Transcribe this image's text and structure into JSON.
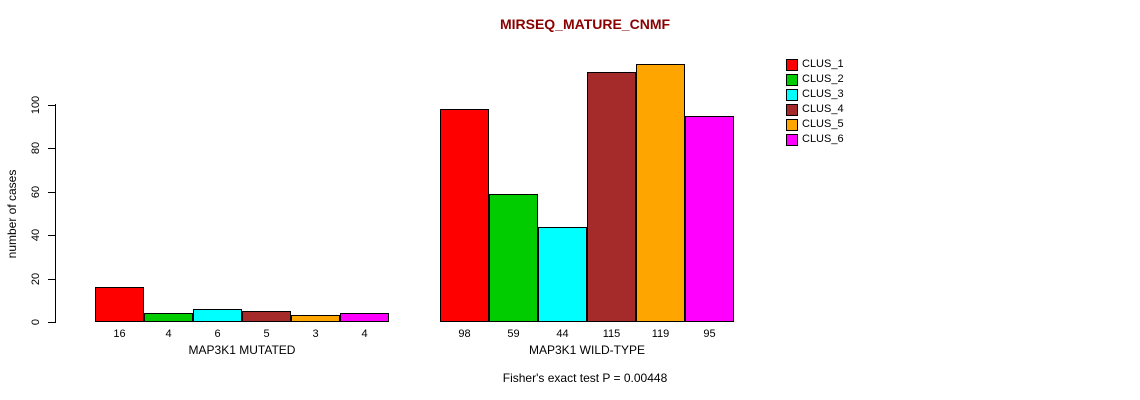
{
  "chart_data": {
    "type": "bar",
    "title": "MIRSEQ_MATURE_CNMF",
    "ylabel": "number of cases",
    "xlabel": "",
    "annotation": "Fisher's exact test P = 0.00448",
    "yticks": [
      0,
      20,
      40,
      60,
      80,
      100
    ],
    "ylim": [
      0,
      120
    ],
    "grid": false,
    "legend_position": "right",
    "legend": [
      {
        "label": "CLUS_1",
        "color": "#ff0000"
      },
      {
        "label": "CLUS_2",
        "color": "#00cc00"
      },
      {
        "label": "CLUS_3",
        "color": "#00ffff"
      },
      {
        "label": "CLUS_4",
        "color": "#a52a2a"
      },
      {
        "label": "CLUS_5",
        "color": "#ffa500"
      },
      {
        "label": "CLUS_6",
        "color": "#ff00ff"
      }
    ],
    "groups": [
      {
        "label": "MAP3K1 MUTATED",
        "values": [
          16,
          4,
          6,
          5,
          3,
          4
        ]
      },
      {
        "label": "MAP3K1 WILD-TYPE",
        "values": [
          98,
          59,
          44,
          115,
          119,
          95
        ]
      }
    ]
  }
}
